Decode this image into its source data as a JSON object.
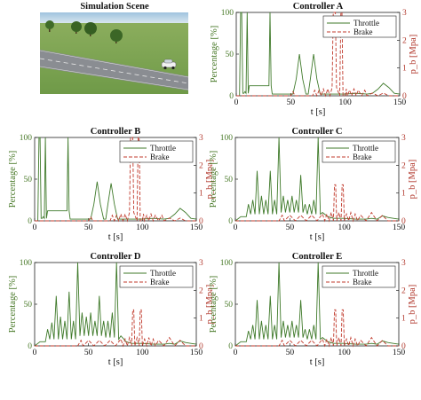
{
  "scene": {
    "title": "Simulation Scene"
  },
  "colors": {
    "throttle": "#3f7a2a",
    "brake": "#c0392b",
    "axis": "#222222",
    "left_axis_label": "#4a7a2a",
    "right_axis_label": "#b23a2e"
  },
  "chart_data": [
    {
      "type": "line",
      "title": "Controller A",
      "xlabel": "t [s]",
      "ylabel": "Percentage [%]",
      "ylabel_right": "p_b [Mpa]",
      "xlim": [
        0,
        150
      ],
      "ylim": [
        0,
        100
      ],
      "ylim_right": [
        0,
        3
      ],
      "xticks": [
        0,
        50,
        100,
        150
      ],
      "yticks": [
        0,
        50,
        100
      ],
      "yticks_right": [
        0,
        1,
        2,
        3
      ],
      "legend": "top-right",
      "series": [
        {
          "name": "Throttle",
          "axis": "left",
          "style": "solid",
          "x": [
            0,
            3,
            4,
            5,
            6,
            7,
            8,
            9,
            10,
            11,
            12,
            13,
            14,
            30,
            31,
            32,
            33,
            45,
            52,
            55,
            58,
            61,
            64,
            66,
            68,
            71,
            74,
            77,
            80,
            85,
            95,
            100,
            110,
            120,
            125,
            130,
            135,
            140,
            145,
            150
          ],
          "y": [
            0,
            0,
            100,
            100,
            3,
            3,
            5,
            3,
            100,
            3,
            12,
            12,
            12,
            12,
            100,
            12,
            2,
            2,
            2,
            20,
            50,
            20,
            2,
            2,
            20,
            50,
            20,
            2,
            2,
            2,
            2,
            2,
            3,
            2,
            3,
            8,
            15,
            10,
            3,
            2
          ]
        },
        {
          "name": "Brake",
          "axis": "right",
          "style": "dashed",
          "x": [
            0,
            50,
            52,
            54,
            56,
            60,
            65,
            70,
            72,
            74,
            76,
            78,
            80,
            82,
            84,
            86,
            88,
            89,
            90,
            91,
            92,
            95,
            96,
            97,
            98,
            100,
            101,
            102,
            104,
            106,
            108,
            110,
            112,
            115,
            118,
            120,
            125,
            130,
            135,
            140,
            145,
            150
          ],
          "y": [
            0,
            0,
            0.15,
            0,
            0,
            0,
            0,
            0,
            0.2,
            0,
            0.2,
            0,
            0.25,
            0,
            0.25,
            0,
            0.3,
            3,
            3,
            3,
            0.3,
            0,
            3,
            3,
            0,
            0,
            0.25,
            0,
            0.2,
            0,
            0.25,
            0,
            0.2,
            0,
            0.2,
            0,
            0.1,
            0,
            0.1,
            0,
            0,
            0
          ]
        }
      ]
    },
    {
      "type": "line",
      "title": "Controller B",
      "xlabel": "t [s]",
      "ylabel": "Percentage [%]",
      "ylabel_right": "p_b [Mpa]",
      "xlim": [
        0,
        150
      ],
      "ylim": [
        0,
        100
      ],
      "ylim_right": [
        0,
        3
      ],
      "xticks": [
        0,
        50,
        100,
        150
      ],
      "yticks": [
        0,
        50,
        100
      ],
      "yticks_right": [
        0,
        1,
        2,
        3
      ],
      "legend": "top-right",
      "series": [
        {
          "name": "Throttle",
          "axis": "left",
          "style": "solid",
          "x": [
            0,
            3,
            4,
            5,
            6,
            7,
            8,
            9,
            10,
            11,
            12,
            13,
            14,
            30,
            31,
            32,
            33,
            45,
            52,
            55,
            58,
            61,
            64,
            66,
            68,
            71,
            74,
            77,
            80,
            85,
            95,
            100,
            110,
            120,
            125,
            130,
            135,
            140,
            145,
            150
          ],
          "y": [
            0,
            0,
            100,
            100,
            3,
            3,
            5,
            3,
            100,
            3,
            12,
            12,
            12,
            12,
            100,
            12,
            2,
            2,
            2,
            20,
            47,
            20,
            2,
            2,
            20,
            45,
            20,
            2,
            2,
            2,
            2,
            2,
            3,
            2,
            3,
            8,
            15,
            10,
            3,
            2
          ]
        },
        {
          "name": "Brake",
          "axis": "right",
          "style": "dashed",
          "x": [
            0,
            50,
            52,
            54,
            56,
            60,
            65,
            70,
            72,
            74,
            76,
            78,
            80,
            82,
            84,
            86,
            88,
            89,
            90,
            91,
            92,
            95,
            96,
            97,
            98,
            100,
            101,
            102,
            104,
            106,
            108,
            110,
            112,
            115,
            118,
            120,
            125,
            130,
            135,
            140,
            145,
            150
          ],
          "y": [
            0,
            0,
            0.15,
            0,
            0,
            0,
            0,
            0,
            0.2,
            0,
            0.2,
            0,
            0.25,
            0,
            0.25,
            0,
            0.3,
            3,
            3,
            3,
            0.3,
            0,
            3,
            3,
            0,
            0,
            0.25,
            0,
            0.2,
            0,
            0.25,
            0,
            0.2,
            0,
            0.2,
            0,
            0.1,
            0,
            0.1,
            0,
            0,
            0
          ]
        }
      ]
    },
    {
      "type": "line",
      "title": "Controller C",
      "xlabel": "t [s]",
      "ylabel": "Percentage [%]",
      "ylabel_right": "p_b [Mpa]",
      "xlim": [
        0,
        150
      ],
      "ylim": [
        0,
        100
      ],
      "ylim_right": [
        0,
        3
      ],
      "xticks": [
        0,
        50,
        100,
        150
      ],
      "yticks": [
        0,
        50,
        100
      ],
      "yticks_right": [
        0,
        1,
        2,
        3
      ],
      "legend": "top-right",
      "series": [
        {
          "name": "Throttle",
          "axis": "left",
          "style": "solid",
          "x": [
            0,
            5,
            10,
            12,
            14,
            16,
            18,
            20,
            22,
            24,
            26,
            28,
            30,
            32,
            34,
            36,
            38,
            40,
            42,
            44,
            46,
            48,
            50,
            52,
            54,
            56,
            58,
            60,
            62,
            64,
            66,
            68,
            70,
            72,
            74,
            76,
            78,
            80,
            85,
            90,
            100,
            110,
            120,
            125,
            130,
            135,
            140,
            145,
            150
          ],
          "y": [
            0,
            5,
            5,
            20,
            8,
            25,
            8,
            60,
            8,
            30,
            8,
            25,
            8,
            60,
            8,
            25,
            8,
            100,
            10,
            30,
            10,
            25,
            10,
            30,
            10,
            25,
            10,
            55,
            10,
            20,
            8,
            20,
            8,
            25,
            8,
            100,
            8,
            10,
            5,
            3,
            3,
            2,
            2,
            3,
            2,
            6,
            4,
            3,
            2
          ]
        },
        {
          "name": "Brake",
          "axis": "right",
          "style": "dashed",
          "x": [
            0,
            40,
            43,
            45,
            50,
            55,
            60,
            65,
            70,
            75,
            80,
            82,
            84,
            86,
            88,
            90,
            91,
            92,
            93,
            95,
            97,
            98,
            99,
            100,
            102,
            104,
            106,
            108,
            110,
            112,
            115,
            120,
            125,
            130,
            135,
            140,
            145,
            150
          ],
          "y": [
            0,
            0,
            0.2,
            0,
            0.2,
            0,
            0.2,
            0,
            0.2,
            0,
            0.25,
            0,
            0.25,
            0,
            0.3,
            0,
            1.3,
            1.3,
            0,
            0.3,
            0,
            1.3,
            1.3,
            0,
            0.25,
            0,
            0.3,
            0,
            0.25,
            0,
            0.2,
            0,
            0.3,
            0,
            0.2,
            0,
            0,
            0
          ]
        }
      ]
    },
    {
      "type": "line",
      "title": "Controller D",
      "xlabel": "t [s]",
      "ylabel": "Percentage [%]",
      "ylabel_right": "p_b [Mpa]",
      "xlim": [
        0,
        150
      ],
      "ylim": [
        0,
        100
      ],
      "ylim_right": [
        0,
        3
      ],
      "xticks": [
        0,
        50,
        100,
        150
      ],
      "yticks": [
        0,
        50,
        100
      ],
      "yticks_right": [
        0,
        1,
        2,
        3
      ],
      "legend": "top-right",
      "series": [
        {
          "name": "Throttle",
          "axis": "left",
          "style": "solid",
          "x": [
            0,
            5,
            10,
            12,
            14,
            16,
            18,
            20,
            22,
            24,
            26,
            28,
            30,
            32,
            34,
            36,
            38,
            40,
            42,
            44,
            46,
            48,
            50,
            52,
            54,
            56,
            58,
            60,
            62,
            64,
            66,
            68,
            70,
            72,
            74,
            76,
            78,
            80,
            85,
            90,
            100,
            110,
            120,
            125,
            130,
            135,
            140,
            145,
            150
          ],
          "y": [
            0,
            5,
            5,
            20,
            8,
            28,
            8,
            60,
            8,
            35,
            8,
            30,
            8,
            65,
            8,
            30,
            8,
            100,
            12,
            40,
            12,
            35,
            12,
            40,
            12,
            30,
            12,
            60,
            12,
            30,
            10,
            30,
            10,
            40,
            10,
            100,
            8,
            12,
            5,
            3,
            3,
            2,
            2,
            3,
            2,
            6,
            4,
            3,
            2
          ]
        },
        {
          "name": "Brake",
          "axis": "right",
          "style": "dashed",
          "x": [
            0,
            40,
            43,
            45,
            50,
            55,
            60,
            65,
            70,
            75,
            80,
            82,
            84,
            86,
            88,
            90,
            91,
            92,
            93,
            95,
            97,
            98,
            99,
            100,
            102,
            104,
            106,
            108,
            110,
            112,
            115,
            120,
            125,
            130,
            135,
            140,
            145,
            150
          ],
          "y": [
            0,
            0,
            0.2,
            0,
            0.2,
            0,
            0.2,
            0,
            0.2,
            0,
            0.25,
            0,
            0.25,
            0,
            0.3,
            0,
            1.3,
            1.3,
            0,
            0.3,
            0,
            1.3,
            1.3,
            0,
            0.25,
            0,
            0.3,
            0,
            0.25,
            0,
            0.2,
            0,
            0.3,
            0,
            0.2,
            0,
            0,
            0
          ]
        }
      ]
    },
    {
      "type": "line",
      "title": "Controller E",
      "xlabel": "t [s]",
      "ylabel": "Percentage [%]",
      "ylabel_right": "p_b [Mpa]",
      "xlim": [
        0,
        150
      ],
      "ylim": [
        0,
        100
      ],
      "ylim_right": [
        0,
        3
      ],
      "xticks": [
        0,
        50,
        100,
        150
      ],
      "yticks": [
        0,
        50,
        100
      ],
      "yticks_right": [
        0,
        1,
        2,
        3
      ],
      "legend": "top-right",
      "series": [
        {
          "name": "Throttle",
          "axis": "left",
          "style": "solid",
          "x": [
            0,
            5,
            10,
            12,
            14,
            16,
            18,
            20,
            22,
            24,
            26,
            28,
            30,
            32,
            34,
            36,
            38,
            40,
            42,
            44,
            46,
            48,
            50,
            52,
            54,
            56,
            58,
            60,
            62,
            64,
            66,
            68,
            70,
            72,
            74,
            76,
            78,
            80,
            85,
            90,
            100,
            110,
            120,
            125,
            130,
            135,
            140,
            145,
            150
          ],
          "y": [
            0,
            5,
            5,
            18,
            8,
            25,
            8,
            55,
            8,
            30,
            8,
            25,
            8,
            60,
            8,
            25,
            8,
            100,
            10,
            30,
            10,
            25,
            10,
            30,
            10,
            25,
            10,
            55,
            10,
            20,
            8,
            20,
            8,
            25,
            8,
            100,
            8,
            10,
            5,
            3,
            3,
            2,
            2,
            3,
            2,
            6,
            4,
            3,
            2
          ]
        },
        {
          "name": "Brake",
          "axis": "right",
          "style": "dashed",
          "x": [
            0,
            40,
            43,
            45,
            50,
            55,
            60,
            65,
            70,
            75,
            80,
            82,
            84,
            86,
            88,
            90,
            91,
            92,
            93,
            95,
            97,
            98,
            99,
            100,
            102,
            104,
            106,
            108,
            110,
            112,
            115,
            120,
            125,
            130,
            135,
            140,
            145,
            150
          ],
          "y": [
            0,
            0,
            0.2,
            0,
            0.2,
            0,
            0.2,
            0,
            0.2,
            0,
            0.25,
            0,
            0.25,
            0,
            0.3,
            0,
            1.3,
            1.3,
            0,
            0.3,
            0,
            1.3,
            1.3,
            0,
            0.25,
            0,
            0.3,
            0,
            0.25,
            0,
            0.2,
            0,
            0.3,
            0,
            0.2,
            0,
            0,
            0
          ]
        }
      ]
    }
  ]
}
